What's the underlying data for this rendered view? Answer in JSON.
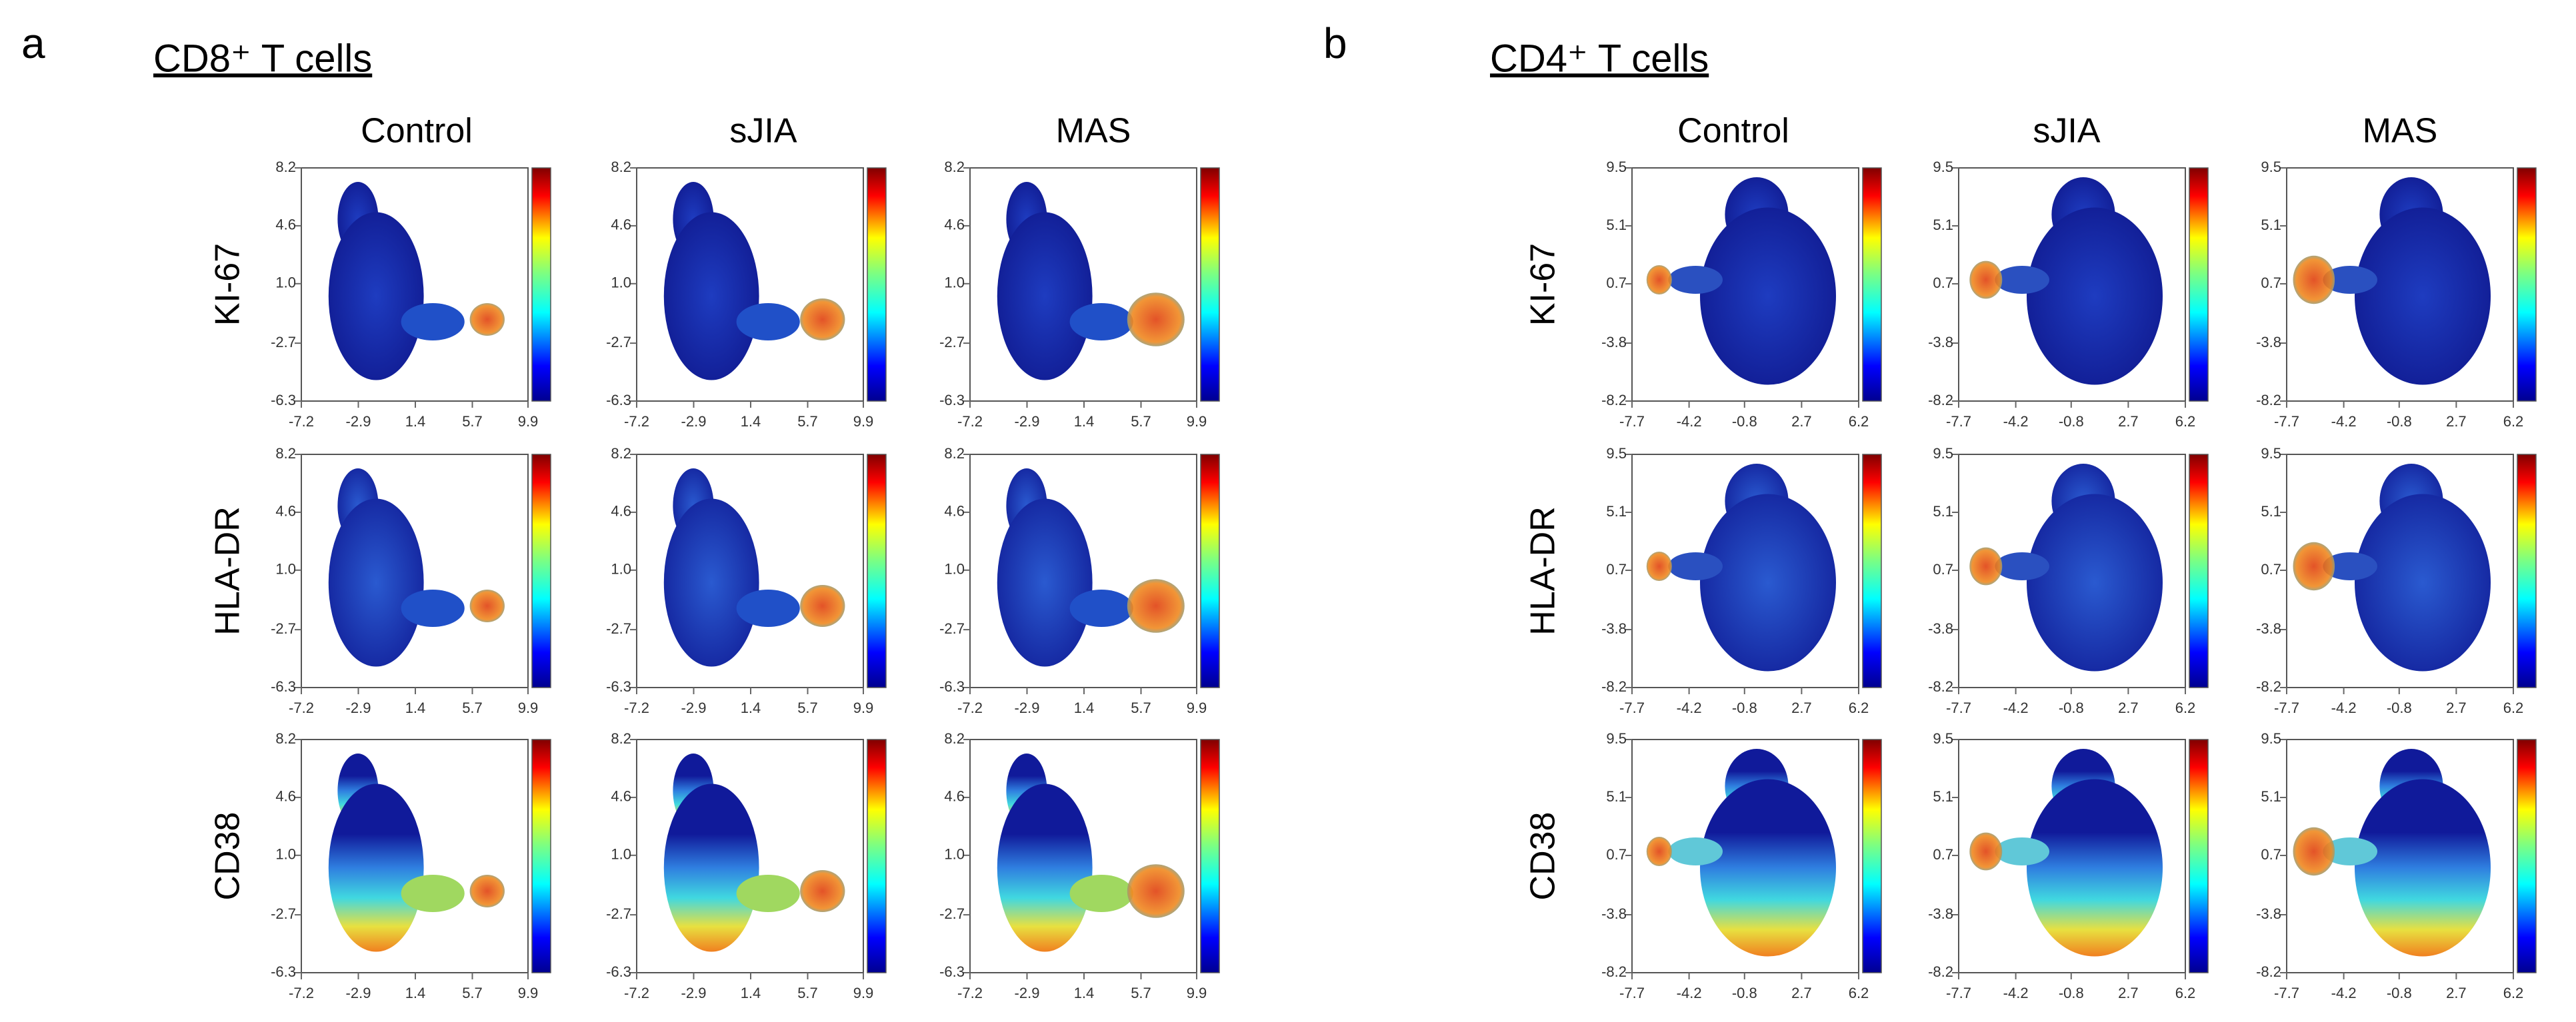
{
  "panels": [
    {
      "label": "a",
      "title": "CD8⁺ T cells",
      "conditions": [
        "Control",
        "sJIA",
        "MAS"
      ],
      "markers": [
        "KI-67",
        "HLA-DR",
        "CD38"
      ],
      "xlim": [
        -7.2,
        9.9
      ],
      "ylim": [
        -6.3,
        8.2
      ],
      "xticks": [
        -7.2,
        -2.9,
        1.4,
        5.7,
        9.9
      ],
      "yticks": [
        8.2,
        4.6,
        {
          "value": 1,
          "label": "1.0"
        },
        -2.7,
        -6.3
      ]
    },
    {
      "label": "b",
      "title": "CD4⁺ T cells",
      "conditions": [
        "Control",
        "sJIA",
        "MAS"
      ],
      "markers": [
        "KI-67",
        "HLA-DR",
        "CD38"
      ],
      "xlim": [
        -7.7,
        6.2
      ],
      "ylim": [
        -8.2,
        9.5
      ],
      "xticks": [
        -7.7,
        -4.2,
        -0.8,
        2.7,
        6.2
      ],
      "yticks": [
        9.5,
        5.1,
        0.7,
        -3.8,
        -8.2
      ]
    }
  ]
}
